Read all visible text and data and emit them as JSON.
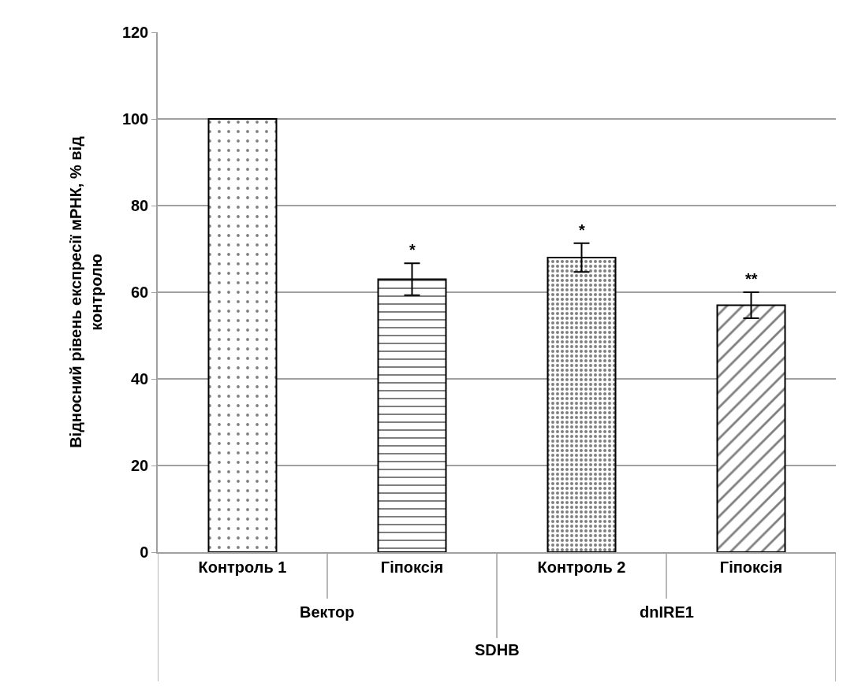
{
  "chart_data": {
    "type": "bar",
    "ylabel": "Відносний рівень експресії мРНК, % від\nконтролю",
    "categories": [
      "Контроль 1",
      "Гіпоксія",
      "Контроль 2",
      "Гіпоксія"
    ],
    "values": [
      100,
      63,
      68,
      57
    ],
    "errors": [
      null,
      3.7,
      3.3,
      3.0
    ],
    "value_labels": [
      null,
      "*",
      "*",
      "**"
    ],
    "color": "#000000",
    "ylim": [
      0,
      120
    ],
    "yticks": [
      0,
      20,
      40,
      60,
      80,
      100,
      120
    ],
    "grid": "y",
    "legend": false,
    "annotations": [
      "Вектор",
      "dnIRE1",
      "SDHB"
    ]
  }
}
